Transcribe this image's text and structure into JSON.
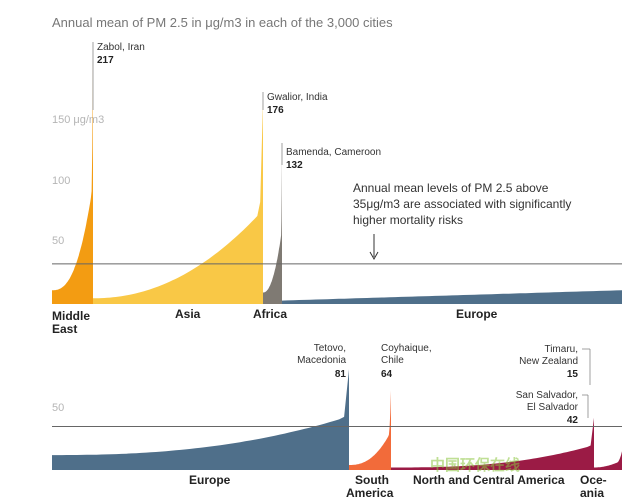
{
  "chart_data": {
    "type": "area",
    "title": "Annual mean of PM 2.5 in μg/m3 in each of the 3,000 cities",
    "unit": "μg/m3",
    "threshold": 35,
    "annotation": {
      "lines": [
        "Annual mean levels of PM 2.5 above",
        "35μg/m3 are associated with significantly",
        "higher mortality risks"
      ]
    },
    "watermark": "中国环保在线",
    "panels": [
      {
        "ylim": [
          0,
          230
        ],
        "ticks": [
          {
            "value": 150,
            "label": "150 μg/m3"
          },
          {
            "value": 100,
            "label": "100"
          },
          {
            "value": 50,
            "label": "50"
          }
        ],
        "regions": [
          {
            "name": "Middle East",
            "label_lines": [
              "Middle",
              "East"
            ],
            "color": "#f39c12",
            "min": 12,
            "max": 217,
            "curve": 2.6,
            "sharp": 0.04,
            "highlight": {
              "lines": [
                "Zabol, Iran"
              ],
              "value": "217"
            }
          },
          {
            "name": "Asia",
            "label_lines": [
              "Asia"
            ],
            "color": "#f9c846",
            "min": 5,
            "max": 176,
            "curve": 2.1,
            "sharp": 0.025,
            "highlight": {
              "lines": [
                "Gwalior, India"
              ],
              "value": "176"
            }
          },
          {
            "name": "Africa",
            "label_lines": [
              "Africa"
            ],
            "color": "#7f7a73",
            "min": 10,
            "max": 132,
            "curve": 2.2,
            "sharp": 0.06,
            "highlight": {
              "lines": [
                "Bamenda, Cameroon"
              ],
              "value": "132"
            }
          },
          {
            "name": "Europe",
            "label_lines": [
              "Europe"
            ],
            "color": "#4f6f8a",
            "min": 3,
            "max": 12,
            "curve": 1.0,
            "sharp": 0,
            "highlight": null
          }
        ]
      },
      {
        "ylim": [
          0,
          90
        ],
        "ticks": [
          {
            "value": 50,
            "label": "50"
          }
        ],
        "regions": [
          {
            "name": "Europe",
            "label_lines": [
              "Europe"
            ],
            "color": "#4f6f8a",
            "min": 12,
            "max": 81,
            "curve": 2.4,
            "sharp": 0.02,
            "highlight": {
              "lines": [
                "Tetovo,",
                "Macedonia"
              ],
              "value": "81"
            }
          },
          {
            "name": "South America",
            "label_lines": [
              "South",
              "America"
            ],
            "color": "#f26b3a",
            "min": 4,
            "max": 64,
            "curve": 2.4,
            "sharp": 0.06,
            "highlight": {
              "lines": [
                "Coyhaique,",
                "Chile"
              ],
              "value": "64"
            }
          },
          {
            "name": "North and Central America",
            "label_lines": [
              "North and Central America"
            ],
            "color": "#9b1b45",
            "min": 2,
            "max": 42,
            "curve": 2.6,
            "sharp": 0.02,
            "highlight": {
              "lines": [
                "San Salvador,",
                "El Salvador"
              ],
              "value": "42"
            }
          },
          {
            "name": "Oceania",
            "label_lines": [
              "Oce-",
              "ania"
            ],
            "color": "#9b1b45",
            "min": 2,
            "max": 15,
            "curve": 2.0,
            "sharp": 0.2,
            "highlight": {
              "lines": [
                "Timaru,",
                "New Zealand"
              ],
              "value": "15"
            }
          }
        ]
      }
    ]
  }
}
